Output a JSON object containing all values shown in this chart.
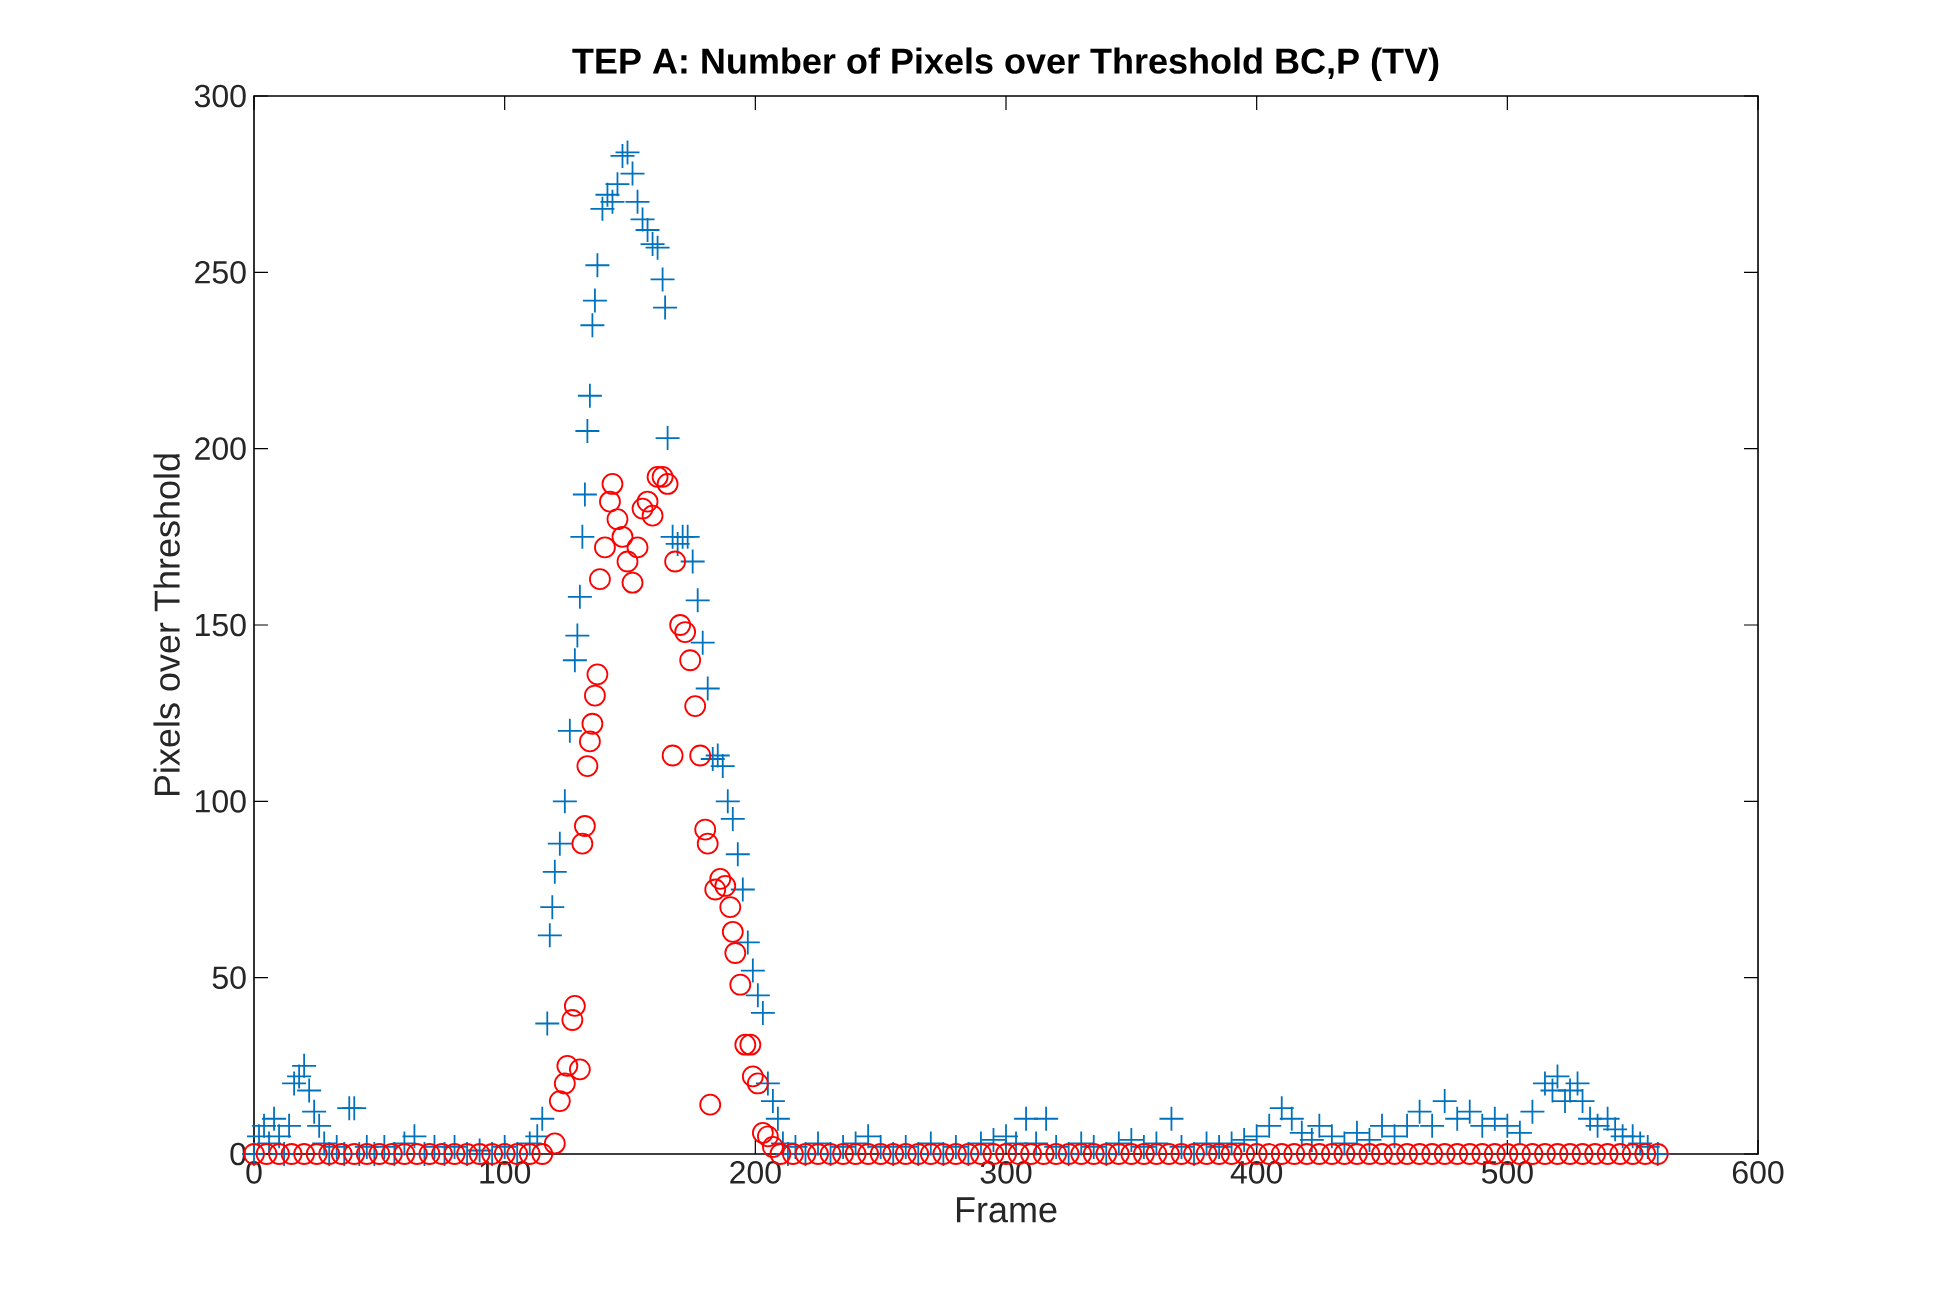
{
  "chart_data": {
    "type": "scatter",
    "title": "TEP A: Number of Pixels over Threshold BC,P (TV)",
    "xlabel": "Frame",
    "ylabel": "Pixels over Threshold",
    "xlim": [
      0,
      600
    ],
    "xticks": [
      0,
      100,
      200,
      300,
      400,
      500,
      600
    ],
    "ylim": [
      0,
      300
    ],
    "yticks": [
      0,
      50,
      100,
      150,
      200,
      250,
      300
    ],
    "series": [
      {
        "color": "#0072bd",
        "marker": "cross",
        "x": [
          0,
          2,
          4,
          6,
          8,
          10,
          12,
          14,
          16,
          18,
          20,
          22,
          24,
          26,
          28,
          30,
          33,
          36,
          38,
          40,
          42,
          45,
          48,
          52,
          56,
          60,
          64,
          68,
          72,
          76,
          80,
          85,
          90,
          95,
          100,
          105,
          110,
          113,
          115,
          117,
          118,
          119,
          120,
          122,
          124,
          126,
          128,
          129,
          130,
          131,
          132,
          133,
          134,
          135,
          136,
          137,
          139,
          141,
          143,
          145,
          147,
          149,
          151,
          153,
          155,
          157,
          159,
          161,
          163,
          164,
          165,
          167,
          169,
          171,
          173,
          175,
          177,
          179,
          181,
          183,
          185,
          187,
          189,
          191,
          193,
          195,
          197,
          199,
          201,
          203,
          205,
          207,
          209,
          211,
          213,
          216,
          220,
          225,
          230,
          235,
          240,
          245,
          250,
          255,
          260,
          265,
          270,
          275,
          280,
          285,
          290,
          295,
          300,
          304,
          308,
          312,
          316,
          320,
          325,
          330,
          335,
          340,
          345,
          350,
          355,
          360,
          366,
          370,
          375,
          380,
          385,
          390,
          395,
          400,
          405,
          410,
          414,
          418,
          422,
          425,
          430,
          435,
          440,
          445,
          450,
          455,
          460,
          465,
          470,
          475,
          480,
          485,
          490,
          495,
          500,
          505,
          510,
          515,
          518,
          520,
          523,
          525,
          528,
          530,
          533,
          536,
          540,
          543,
          546,
          550,
          553,
          556,
          560
        ],
        "values": [
          0,
          5,
          8,
          3,
          10,
          5,
          0,
          8,
          20,
          22,
          25,
          18,
          12,
          8,
          3,
          0,
          2,
          0,
          13,
          13,
          0,
          2,
          0,
          2,
          0,
          3,
          5,
          0,
          2,
          0,
          2,
          0,
          1,
          0,
          2,
          0,
          3,
          5,
          10,
          37,
          62,
          70,
          80,
          88,
          100,
          120,
          140,
          147,
          158,
          175,
          187,
          205,
          215,
          235,
          242,
          252,
          268,
          272,
          270,
          275,
          283,
          284,
          278,
          270,
          265,
          262,
          258,
          257,
          248,
          240,
          203,
          175,
          173,
          175,
          175,
          168,
          157,
          145,
          132,
          112,
          113,
          110,
          100,
          95,
          85,
          75,
          60,
          52,
          45,
          40,
          20,
          15,
          10,
          3,
          0,
          2,
          0,
          3,
          0,
          2,
          3,
          5,
          2,
          0,
          2,
          0,
          3,
          0,
          2,
          0,
          3,
          4,
          5,
          3,
          10,
          3,
          10,
          2,
          0,
          3,
          2,
          0,
          3,
          4,
          2,
          3,
          10,
          2,
          0,
          3,
          2,
          3,
          4,
          5,
          8,
          13,
          10,
          6,
          4,
          8,
          5,
          3,
          6,
          4,
          8,
          5,
          8,
          12,
          8,
          15,
          10,
          12,
          8,
          10,
          8,
          6,
          12,
          20,
          18,
          22,
          15,
          18,
          20,
          15,
          10,
          8,
          10,
          7,
          5,
          5,
          3,
          2,
          0
        ]
      },
      {
        "color": "#ff0000",
        "marker": "circle",
        "x": [
          0,
          5,
          10,
          15,
          20,
          25,
          30,
          35,
          40,
          45,
          50,
          55,
          60,
          65,
          70,
          75,
          80,
          85,
          90,
          95,
          100,
          105,
          110,
          115,
          120,
          122,
          124,
          125,
          127,
          128,
          130,
          131,
          132,
          133,
          134,
          135,
          136,
          137,
          138,
          140,
          142,
          143,
          145,
          147,
          149,
          151,
          153,
          155,
          157,
          159,
          161,
          163,
          165,
          167,
          168,
          170,
          172,
          174,
          176,
          178,
          180,
          181,
          182,
          184,
          186,
          188,
          190,
          191,
          192,
          194,
          196,
          198,
          199,
          201,
          203,
          205,
          207,
          210,
          215,
          220,
          225,
          230,
          235,
          240,
          245,
          250,
          255,
          260,
          265,
          270,
          275,
          280,
          285,
          290,
          295,
          300,
          305,
          310,
          315,
          320,
          325,
          330,
          335,
          340,
          345,
          350,
          355,
          360,
          365,
          370,
          375,
          380,
          385,
          390,
          395,
          400,
          405,
          410,
          415,
          420,
          425,
          430,
          435,
          440,
          445,
          450,
          455,
          460,
          465,
          470,
          475,
          480,
          485,
          490,
          495,
          500,
          505,
          510,
          515,
          520,
          525,
          530,
          535,
          540,
          545,
          550,
          555,
          560
        ],
        "values": [
          0,
          0,
          0,
          0,
          0,
          0,
          0,
          0,
          0,
          0,
          0,
          0,
          0,
          0,
          0,
          0,
          0,
          0,
          0,
          0,
          0,
          0,
          0,
          0,
          3,
          15,
          20,
          25,
          38,
          42,
          24,
          88,
          93,
          110,
          117,
          122,
          130,
          136,
          163,
          172,
          185,
          190,
          180,
          175,
          168,
          162,
          172,
          183,
          185,
          181,
          192,
          192,
          190,
          113,
          168,
          150,
          148,
          140,
          127,
          113,
          92,
          88,
          14,
          75,
          78,
          76,
          70,
          63,
          57,
          48,
          31,
          31,
          22,
          20,
          6,
          5,
          2,
          0,
          0,
          0,
          0,
          0,
          0,
          0,
          0,
          0,
          0,
          0,
          0,
          0,
          0,
          0,
          0,
          0,
          0,
          0,
          0,
          0,
          0,
          0,
          0,
          0,
          0,
          0,
          0,
          0,
          0,
          0,
          0,
          0,
          0,
          0,
          0,
          0,
          0,
          0,
          0,
          0,
          0,
          0,
          0,
          0,
          0,
          0,
          0,
          0,
          0,
          0,
          0,
          0,
          0,
          0,
          0,
          0,
          0,
          0,
          0,
          0,
          0,
          0,
          0,
          0,
          0,
          0,
          0,
          0,
          0,
          0
        ]
      }
    ]
  }
}
